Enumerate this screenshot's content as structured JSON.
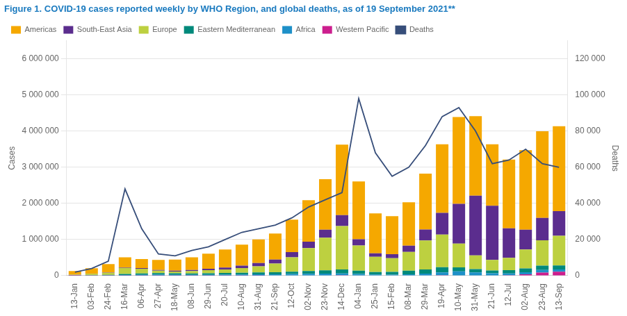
{
  "chart_data": {
    "type": "bar",
    "title": "Figure 1. COVID-19 cases reported weekly by WHO Region, and global deaths, as of 19 September 2021**",
    "x_label": null,
    "y_label": "Cases",
    "y2_label": "Deaths",
    "categories": [
      "13-Jan",
      "03-Feb",
      "24-Feb",
      "16-Mar",
      "06-Apr",
      "27-Apr",
      "18-May",
      "08-Jun",
      "29-Jun",
      "20-Jul",
      "10-Aug",
      "31-Aug",
      "21-Sep",
      "12-Oct",
      "02-Nov",
      "23-Nov",
      "14-Dec",
      "04-Jan",
      "25-Jan",
      "15-Feb",
      "08-Mar",
      "29-Mar",
      "19-Apr",
      "10-May",
      "31-May",
      "21-Jun",
      "12-Jul",
      "02-Aug",
      "23-Aug",
      "13-Sep"
    ],
    "series": [
      {
        "name": "Western Pacific",
        "color": "#CC1E8E",
        "values": [
          2000,
          3000,
          4000,
          4000,
          3500,
          3000,
          3000,
          3500,
          4000,
          4500,
          5000,
          6000,
          7000,
          8000,
          9000,
          10000,
          12000,
          9000,
          7500,
          7500,
          9000,
          10000,
          12000,
          10000,
          10000,
          11000,
          15000,
          40000,
          85000,
          110000
        ]
      },
      {
        "name": "Africa",
        "color": "#1E90C8",
        "values": [
          3000,
          5000,
          7000,
          15000,
          22000,
          26000,
          22000,
          18000,
          18000,
          22000,
          26000,
          30000,
          33000,
          38000,
          42000,
          46000,
          52000,
          38000,
          26000,
          22000,
          30000,
          45000,
          80000,
          110000,
          82000,
          55000,
          48000,
          58000,
          72000,
          65000
        ]
      },
      {
        "name": "Eastern Mediterranean",
        "color": "#00897B",
        "values": [
          5000,
          8000,
          12000,
          28000,
          38000,
          45000,
          40000,
          42000,
          45000,
          48000,
          52000,
          55000,
          58000,
          65000,
          80000,
          95000,
          110000,
          90000,
          68000,
          75000,
          100000,
          120000,
          145000,
          110000,
          90000,
          80000,
          90000,
          105000,
          120000,
          110000
        ]
      },
      {
        "name": "Europe",
        "color": "#BDD040",
        "values": [
          20000,
          35000,
          60000,
          170000,
          130000,
          65000,
          50000,
          65000,
          85000,
          100000,
          130000,
          170000,
          240000,
          400000,
          630000,
          900000,
          1200000,
          700000,
          420000,
          380000,
          520000,
          800000,
          900000,
          660000,
          380000,
          290000,
          340000,
          520000,
          700000,
          820000
        ]
      },
      {
        "name": "South-East Asia",
        "color": "#5B2D8E",
        "values": [
          3000,
          5000,
          7000,
          12000,
          18000,
          20000,
          22000,
          30000,
          40000,
          50000,
          65000,
          90000,
          110000,
          140000,
          180000,
          220000,
          300000,
          170000,
          100000,
          110000,
          170000,
          300000,
          600000,
          1100000,
          1650000,
          1500000,
          820000,
          550000,
          620000,
          680000
        ]
      },
      {
        "name": "Americas",
        "color": "#F5A800",
        "values": [
          95000,
          150000,
          230000,
          280000,
          250000,
          280000,
          310000,
          350000,
          420000,
          500000,
          580000,
          650000,
          720000,
          900000,
          1150000,
          1400000,
          1950000,
          1600000,
          1100000,
          1050000,
          1200000,
          1550000,
          1900000,
          2400000,
          2200000,
          1700000,
          1900000,
          2200000,
          2400000,
          2350000
        ]
      },
      {
        "name": "Deaths",
        "type": "line",
        "axis": "y2",
        "color": "#374e7a",
        "values": [
          2000,
          4000,
          8000,
          48000,
          26000,
          12000,
          11000,
          14000,
          16000,
          20000,
          24000,
          26000,
          28000,
          32000,
          38000,
          42000,
          46000,
          98000,
          68000,
          55000,
          60000,
          72000,
          88000,
          93000,
          80000,
          62000,
          64000,
          70000,
          62000,
          60000
        ]
      }
    ],
    "ylim": [
      0,
      6500000
    ],
    "yticks": [
      0,
      {
        "value": 1000000,
        "label": "1 000 000"
      },
      {
        "value": 2000000,
        "label": "2 000 000"
      },
      {
        "value": 3000000,
        "label": "3 000 000"
      },
      {
        "value": 4000000,
        "label": "4 000 000"
      },
      {
        "value": 5000000,
        "label": "5 000 000"
      },
      {
        "value": 6000000,
        "label": "6 000 000"
      }
    ],
    "y2lim": [
      0,
      130000
    ],
    "y2ticks": [
      0,
      {
        "value": 20000,
        "label": "20 000"
      },
      {
        "value": 40000,
        "label": "40 000"
      },
      {
        "value": 60000,
        "label": "60 000"
      },
      {
        "value": 80000,
        "label": "80 000"
      },
      {
        "value": 100000,
        "label": "100 000"
      },
      {
        "value": 120000,
        "label": "120 000"
      }
    ],
    "stacked": true,
    "grid": true,
    "legend": "upper left"
  }
}
